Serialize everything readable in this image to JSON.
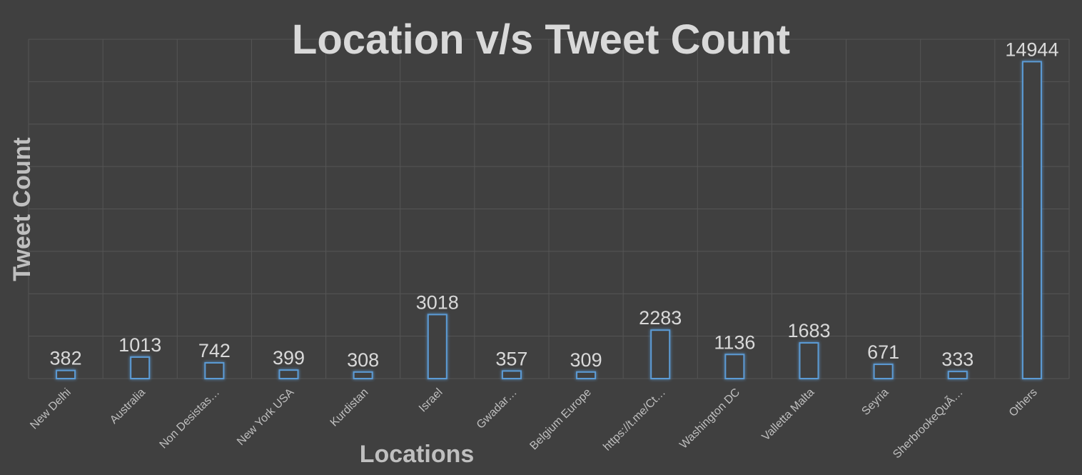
{
  "chart_data": {
    "type": "bar",
    "title": "Location v/s Tweet Count",
    "xlabel": "Locations",
    "ylabel": "Tweet Count",
    "categories": [
      "New Delhi",
      "Australia",
      "Non Desistas…",
      "New York USA",
      "Kurdistan",
      "Israel",
      "Gwadar…",
      "Belgium Europe",
      "https://t.me/Ct…",
      "Washington DC",
      "Valletta Malta",
      "Seyria",
      "SherbrookeQuÃ…",
      "Others"
    ],
    "values": [
      382,
      1013,
      742,
      399,
      308,
      3018,
      357,
      309,
      2283,
      1136,
      1683,
      671,
      333,
      14944
    ],
    "ylim": [
      0,
      16000
    ],
    "grid": true,
    "legend": "none",
    "colors": {
      "background": "#404040",
      "bar_outline": "#5b9bd5",
      "text": "#d9d9d9",
      "grid": "#555555"
    }
  }
}
